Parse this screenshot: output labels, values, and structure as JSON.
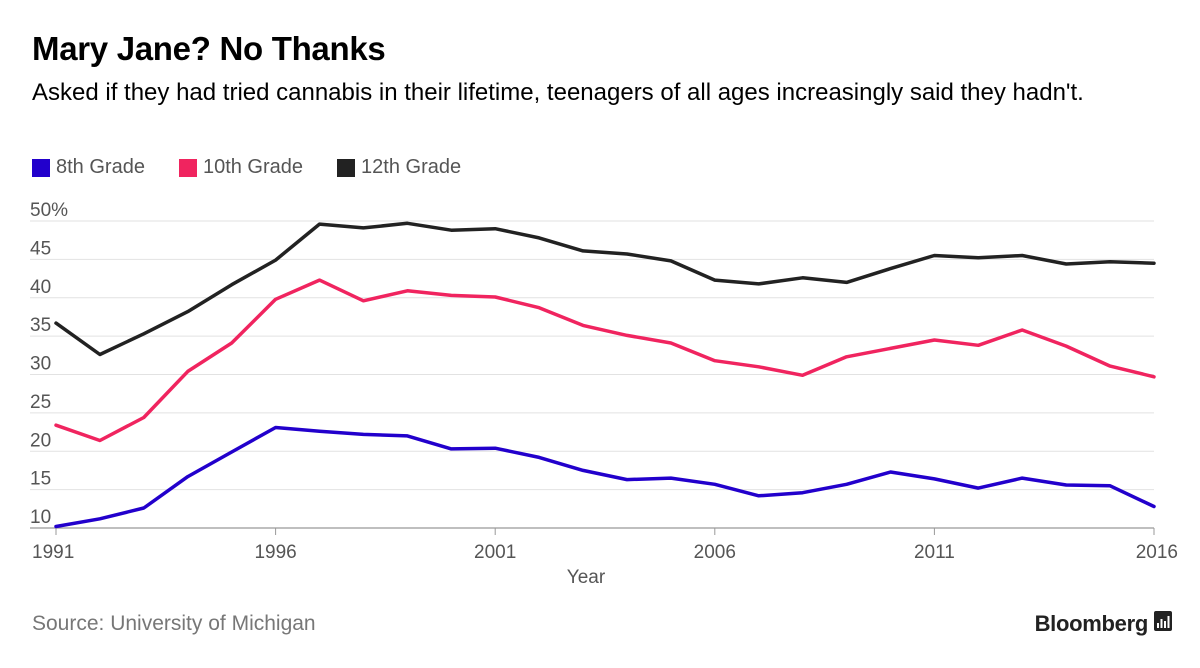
{
  "header": {
    "title": "Mary Jane? No Thanks",
    "subtitle": "Asked if they had tried cannabis in their lifetime, teenagers of all ages increasingly said they hadn't."
  },
  "footer": {
    "source": "Source: University of Michigan",
    "brand": "Bloomberg",
    "brand_icon": "bloomberg-chart-icon"
  },
  "chart_data": {
    "type": "line",
    "title": "Mary Jane? No Thanks",
    "xlabel": "Year",
    "ylabel": "",
    "x": [
      1991,
      1992,
      1993,
      1994,
      1995,
      1996,
      1997,
      1998,
      1999,
      2000,
      2001,
      2002,
      2003,
      2004,
      2005,
      2006,
      2007,
      2008,
      2009,
      2010,
      2011,
      2012,
      2013,
      2014,
      2015,
      2016
    ],
    "xlim": [
      1991,
      2016
    ],
    "ylim": [
      10,
      50
    ],
    "x_ticks": [
      "1991",
      "1996",
      "2001",
      "2006",
      "2011",
      "2016"
    ],
    "y_ticks": [
      "10",
      "15",
      "20",
      "25",
      "30",
      "35",
      "40",
      "45",
      "50%"
    ],
    "grid": "horizontal",
    "legend_position": "top-left",
    "series": [
      {
        "name": "8th Grade",
        "color": "#2200CC",
        "values": [
          10.2,
          11.2,
          12.6,
          16.7,
          19.9,
          23.1,
          22.6,
          22.2,
          22.0,
          20.3,
          20.4,
          19.2,
          17.5,
          16.3,
          16.5,
          15.7,
          14.2,
          14.6,
          15.7,
          17.3,
          16.4,
          15.2,
          16.5,
          15.6,
          15.5,
          12.8
        ]
      },
      {
        "name": "10th Grade",
        "color": "#F0245F",
        "values": [
          23.4,
          21.4,
          24.4,
          30.4,
          34.1,
          39.8,
          42.3,
          39.6,
          40.9,
          40.3,
          40.1,
          38.7,
          36.4,
          35.1,
          34.1,
          31.8,
          31.0,
          29.9,
          32.3,
          33.4,
          34.5,
          33.8,
          35.8,
          33.7,
          31.1,
          29.7
        ]
      },
      {
        "name": "12th Grade",
        "color": "#222222",
        "values": [
          36.7,
          32.6,
          35.3,
          38.2,
          41.7,
          44.9,
          49.6,
          49.1,
          49.7,
          48.8,
          49.0,
          47.8,
          46.1,
          45.7,
          44.8,
          42.3,
          41.8,
          42.6,
          42.0,
          43.8,
          45.5,
          45.2,
          45.5,
          44.4,
          44.7,
          44.5
        ]
      }
    ]
  }
}
